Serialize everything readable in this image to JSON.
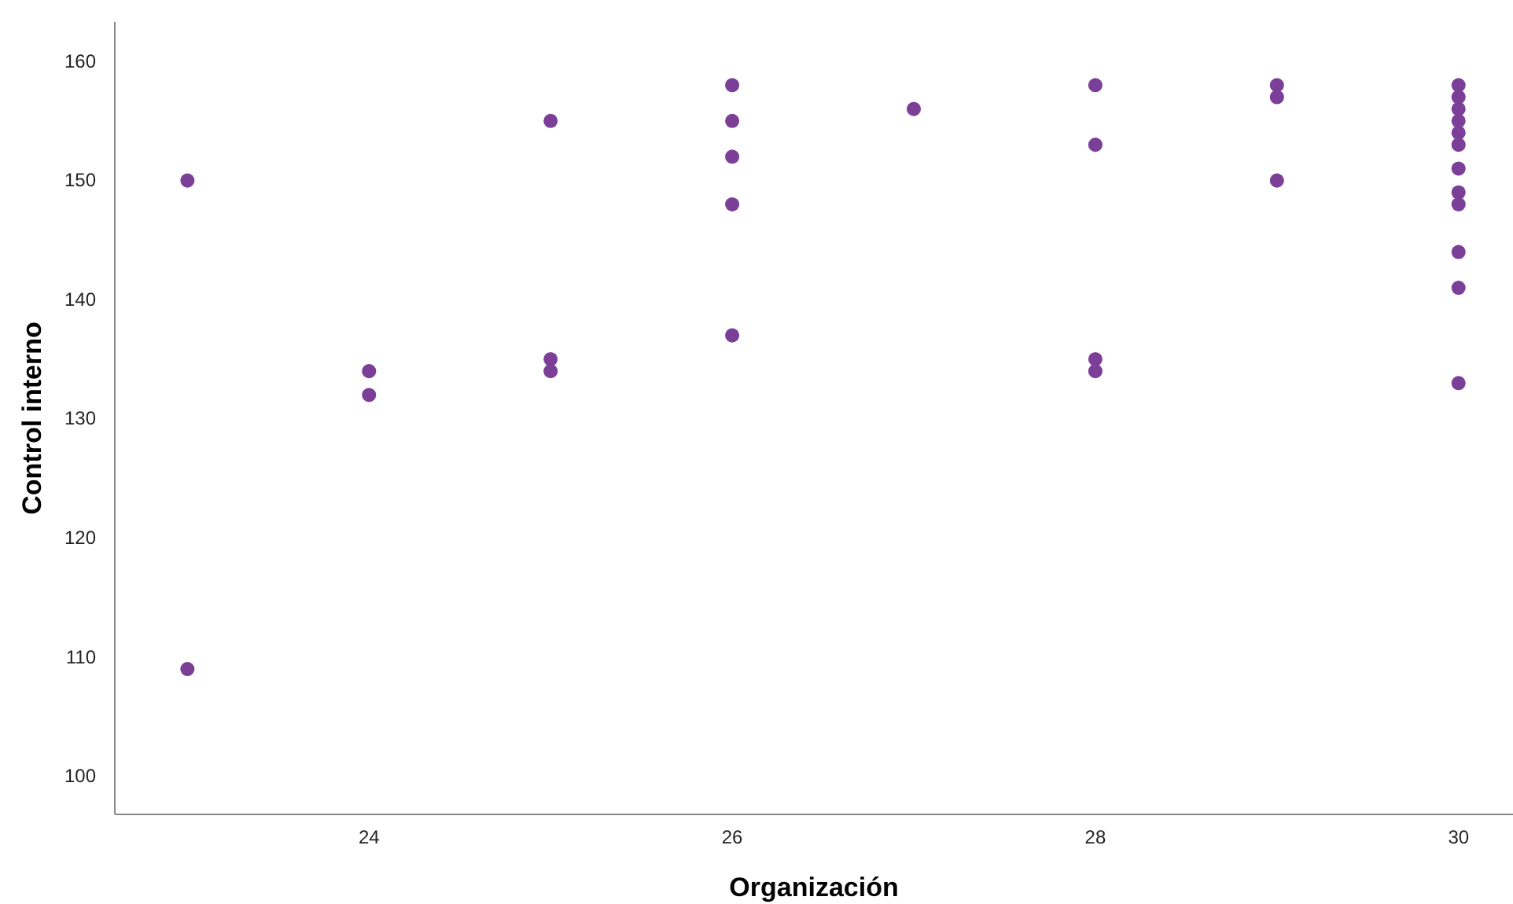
{
  "chart_data": {
    "type": "scatter",
    "xlabel": "Organización",
    "ylabel": "Control interno",
    "x": [
      23,
      23,
      24,
      24,
      25,
      25,
      25,
      26,
      26,
      26,
      26,
      26,
      27,
      28,
      28,
      28,
      28,
      29,
      29,
      29,
      30,
      30,
      30,
      30,
      30,
      30,
      30,
      30,
      30,
      30,
      30,
      30
    ],
    "values": [
      150,
      109,
      134,
      132,
      155,
      135,
      134,
      158,
      155,
      152,
      148,
      137,
      156,
      158,
      153,
      135,
      134,
      158,
      157,
      150,
      158,
      157,
      156,
      155,
      154,
      153,
      151,
      149,
      148,
      144,
      141,
      133
    ],
    "color": "#7b3f98",
    "marker": "circle",
    "xlim": [
      22.6,
      30.3
    ],
    "xticks": [
      24,
      26,
      28,
      30
    ],
    "ylim": [
      96.8,
      163.3
    ],
    "yticks": [
      100,
      110,
      120,
      130,
      140,
      150,
      160
    ],
    "grid": false
  }
}
